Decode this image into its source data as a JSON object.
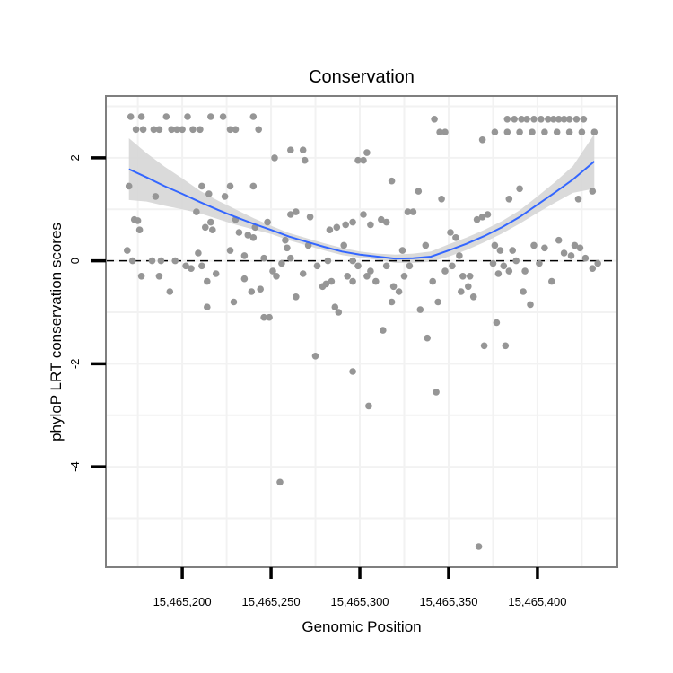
{
  "chart_data": {
    "type": "scatter",
    "title": "Conservation",
    "xlabel": "Genomic Position",
    "ylabel": "phyloP LRT conservation scores",
    "xlim": [
      15465157,
      15465445
    ],
    "ylim": [
      -5.95,
      3.2
    ],
    "xticks": [
      15465200,
      15465250,
      15465300,
      15465350,
      15465400
    ],
    "xtick_labels": [
      "15,465,200",
      "15,465,250",
      "15,465,300",
      "15,465,350",
      "15,465,400"
    ],
    "yticks": [
      2,
      0,
      -2,
      -4
    ],
    "ytick_labels": [
      "2",
      "0",
      "-2",
      "-4"
    ],
    "reference_line": {
      "y": 0,
      "style": "dashed"
    },
    "colors": {
      "points": "#969696",
      "smooth": "#3366ff",
      "band": "#d6d6d6",
      "frame": "#7f7f7f",
      "grid": "#f2f2f2"
    },
    "points": [
      [
        15465171,
        2.8
      ],
      [
        15465177,
        2.8
      ],
      [
        15465184,
        2.55
      ],
      [
        15465191,
        2.8
      ],
      [
        15465197,
        2.55
      ],
      [
        15465203,
        2.8
      ],
      [
        15465210,
        2.55
      ],
      [
        15465216,
        2.8
      ],
      [
        15465223,
        2.8
      ],
      [
        15465230,
        2.55
      ],
      [
        15465240,
        2.8
      ],
      [
        15465174,
        2.55
      ],
      [
        15465178,
        2.55
      ],
      [
        15465187,
        2.55
      ],
      [
        15465194,
        2.55
      ],
      [
        15465200,
        2.55
      ],
      [
        15465206,
        2.55
      ],
      [
        15465227,
        2.55
      ],
      [
        15465243,
        2.55
      ],
      [
        15465170,
        1.45
      ],
      [
        15465185,
        1.25
      ],
      [
        15465211,
        1.45
      ],
      [
        15465215,
        1.3
      ],
      [
        15465224,
        1.25
      ],
      [
        15465227,
        1.45
      ],
      [
        15465240,
        1.45
      ],
      [
        15465252,
        2.0
      ],
      [
        15465261,
        2.15
      ],
      [
        15465268,
        2.15
      ],
      [
        15465269,
        1.95
      ],
      [
        15465299,
        1.95
      ],
      [
        15465302,
        1.95
      ],
      [
        15465304,
        2.1
      ],
      [
        15465173,
        0.8
      ],
      [
        15465175,
        0.78
      ],
      [
        15465176,
        0.6
      ],
      [
        15465183,
        0.0
      ],
      [
        15465188,
        0.0
      ],
      [
        15465196,
        0.0
      ],
      [
        15465208,
        0.95
      ],
      [
        15465213,
        0.65
      ],
      [
        15465216,
        0.75
      ],
      [
        15465217,
        0.6
      ],
      [
        15465230,
        0.8
      ],
      [
        15465232,
        0.55
      ],
      [
        15465237,
        0.5
      ],
      [
        15465241,
        0.65
      ],
      [
        15465248,
        0.75
      ],
      [
        15465258,
        0.4
      ],
      [
        15465261,
        0.9
      ],
      [
        15465264,
        0.95
      ],
      [
        15465272,
        0.85
      ],
      [
        15465283,
        0.6
      ],
      [
        15465287,
        0.65
      ],
      [
        15465292,
        0.7
      ],
      [
        15465296,
        0.75
      ],
      [
        15465302,
        0.9
      ],
      [
        15465306,
        0.7
      ],
      [
        15465312,
        0.8
      ],
      [
        15465169,
        0.2
      ],
      [
        15465172,
        0.0
      ],
      [
        15465177,
        -0.3
      ],
      [
        15465187,
        -0.3
      ],
      [
        15465193,
        -0.6
      ],
      [
        15465202,
        -0.1
      ],
      [
        15465205,
        -0.15
      ],
      [
        15465209,
        0.15
      ],
      [
        15465211,
        -0.1
      ],
      [
        15465214,
        -0.4
      ],
      [
        15465219,
        -0.25
      ],
      [
        15465227,
        0.2
      ],
      [
        15465235,
        0.1
      ],
      [
        15465240,
        0.45
      ],
      [
        15465246,
        0.05
      ],
      [
        15465251,
        -0.2
      ],
      [
        15465253,
        -0.3
      ],
      [
        15465259,
        0.25
      ],
      [
        15465264,
        -0.7
      ],
      [
        15465271,
        0.3
      ],
      [
        15465276,
        -0.1
      ],
      [
        15465279,
        -0.5
      ],
      [
        15465282,
        0.0
      ],
      [
        15465286,
        -0.9
      ],
      [
        15465291,
        0.3
      ],
      [
        15465296,
        0.0
      ],
      [
        15465299,
        -0.1
      ],
      [
        15465304,
        -0.3
      ],
      [
        15465309,
        -0.4
      ],
      [
        15465315,
        -0.1
      ],
      [
        15465319,
        -0.5
      ],
      [
        15465229,
        -0.8
      ],
      [
        15465235,
        -0.35
      ],
      [
        15465239,
        -0.6
      ],
      [
        15465244,
        -0.55
      ],
      [
        15465249,
        -1.1
      ],
      [
        15465256,
        -0.05
      ],
      [
        15465261,
        0.05
      ],
      [
        15465268,
        -0.25
      ],
      [
        15465281,
        -0.45
      ],
      [
        15465284,
        -0.4
      ],
      [
        15465288,
        -1.0
      ],
      [
        15465293,
        -0.3
      ],
      [
        15465296,
        -0.4
      ],
      [
        15465306,
        -0.2
      ],
      [
        15465318,
        -0.8
      ],
      [
        15465322,
        -0.6
      ],
      [
        15465325,
        -0.3
      ],
      [
        15465214,
        -0.9
      ],
      [
        15465246,
        -1.1
      ],
      [
        15465275,
        -1.85
      ],
      [
        15465296,
        -2.15
      ],
      [
        15465305,
        -2.82
      ],
      [
        15465313,
        -1.35
      ],
      [
        15465255,
        -4.3
      ],
      [
        15465318,
        1.55
      ],
      [
        15465315,
        0.75
      ],
      [
        15465324,
        0.2
      ],
      [
        15465327,
        0.95
      ],
      [
        15465330,
        0.95
      ],
      [
        15465333,
        1.35
      ],
      [
        15465337,
        0.3
      ],
      [
        15465328,
        -0.1
      ],
      [
        15465334,
        -0.95
      ],
      [
        15465341,
        -0.4
      ],
      [
        15465344,
        -0.8
      ],
      [
        15465338,
        -1.5
      ],
      [
        15465343,
        -2.55
      ],
      [
        15465342,
        2.75
      ],
      [
        15465345,
        2.5
      ],
      [
        15465348,
        2.5
      ],
      [
        15465346,
        1.2
      ],
      [
        15465351,
        0.55
      ],
      [
        15465354,
        0.45
      ],
      [
        15465356,
        0.1
      ],
      [
        15465358,
        -0.3
      ],
      [
        15465361,
        -0.5
      ],
      [
        15465364,
        -0.7
      ],
      [
        15465348,
        -0.2
      ],
      [
        15465352,
        -0.1
      ],
      [
        15465357,
        -0.6
      ],
      [
        15465362,
        -0.3
      ],
      [
        15465366,
        0.8
      ],
      [
        15465369,
        0.85
      ],
      [
        15465372,
        0.9
      ],
      [
        15465375,
        -0.05
      ],
      [
        15465378,
        -0.25
      ],
      [
        15465369,
        2.35
      ],
      [
        15465376,
        2.5
      ],
      [
        15465383,
        2.5
      ],
      [
        15465390,
        2.5
      ],
      [
        15465397,
        2.5
      ],
      [
        15465404,
        2.5
      ],
      [
        15465411,
        2.5
      ],
      [
        15465418,
        2.5
      ],
      [
        15465425,
        2.5
      ],
      [
        15465432,
        2.5
      ],
      [
        15465383,
        2.75
      ],
      [
        15465387,
        2.75
      ],
      [
        15465391,
        2.75
      ],
      [
        15465394,
        2.75
      ],
      [
        15465398,
        2.75
      ],
      [
        15465402,
        2.75
      ],
      [
        15465406,
        2.75
      ],
      [
        15465409,
        2.75
      ],
      [
        15465412,
        2.75
      ],
      [
        15465415,
        2.75
      ],
      [
        15465418,
        2.75
      ],
      [
        15465422,
        2.75
      ],
      [
        15465426,
        2.75
      ],
      [
        15465384,
        1.2
      ],
      [
        15465390,
        1.4
      ],
      [
        15465431,
        1.35
      ],
      [
        15465423,
        1.2
      ],
      [
        15465370,
        -1.65
      ],
      [
        15465382,
        -1.65
      ],
      [
        15465377,
        -1.2
      ],
      [
        15465367,
        -5.55
      ],
      [
        15465376,
        0.3
      ],
      [
        15465379,
        0.2
      ],
      [
        15465381,
        -0.1
      ],
      [
        15465386,
        0.2
      ],
      [
        15465388,
        0.0
      ],
      [
        15465393,
        -0.2
      ],
      [
        15465396,
        -0.85
      ],
      [
        15465398,
        0.3
      ],
      [
        15465401,
        -0.05
      ],
      [
        15465404,
        0.25
      ],
      [
        15465408,
        -0.4
      ],
      [
        15465412,
        0.4
      ],
      [
        15465415,
        0.15
      ],
      [
        15465419,
        0.1
      ],
      [
        15465421,
        0.3
      ],
      [
        15465424,
        0.25
      ],
      [
        15465427,
        0.05
      ],
      [
        15465431,
        -0.15
      ],
      [
        15465434,
        -0.05
      ],
      [
        15465392,
        -0.6
      ],
      [
        15465384,
        -0.2
      ]
    ],
    "smooth": {
      "x": [
        15465170,
        15465180,
        15465190,
        15465200,
        15465210,
        15465220,
        15465230,
        15465240,
        15465250,
        15465260,
        15465270,
        15465280,
        15465290,
        15465300,
        15465310,
        15465320,
        15465330,
        15465340,
        15465350,
        15465360,
        15465370,
        15465380,
        15465390,
        15465400,
        15465410,
        15465420,
        15465432
      ],
      "y": [
        1.78,
        1.62,
        1.45,
        1.3,
        1.14,
        0.99,
        0.85,
        0.72,
        0.6,
        0.47,
        0.37,
        0.27,
        0.18,
        0.12,
        0.08,
        0.04,
        0.05,
        0.08,
        0.2,
        0.33,
        0.48,
        0.65,
        0.85,
        1.09,
        1.33,
        1.58,
        1.93
      ],
      "lo": [
        1.18,
        1.15,
        1.07,
        1.0,
        0.92,
        0.81,
        0.7,
        0.61,
        0.52,
        0.4,
        0.3,
        0.2,
        0.11,
        0.06,
        0.02,
        -0.04,
        -0.04,
        -0.02,
        0.08,
        0.21,
        0.36,
        0.53,
        0.72,
        0.93,
        1.13,
        1.32,
        1.4
      ],
      "hi": [
        2.38,
        2.09,
        1.83,
        1.6,
        1.36,
        1.17,
        1.0,
        0.83,
        0.68,
        0.54,
        0.44,
        0.34,
        0.25,
        0.18,
        0.14,
        0.12,
        0.14,
        0.18,
        0.32,
        0.45,
        0.6,
        0.77,
        0.98,
        1.25,
        1.53,
        1.84,
        2.46
      ]
    }
  }
}
